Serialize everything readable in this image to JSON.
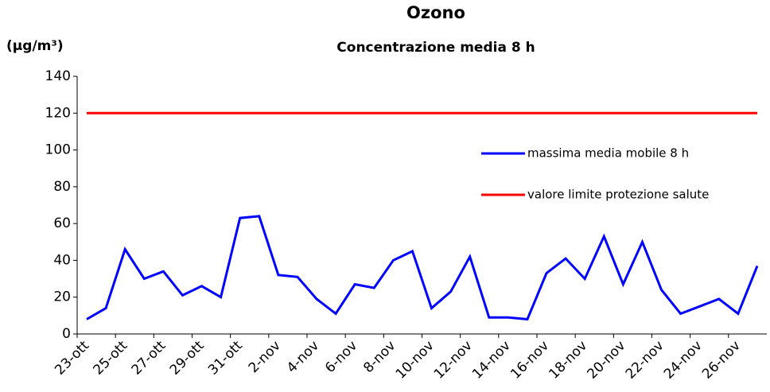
{
  "chart_data": {
    "type": "line",
    "title": "Ozono",
    "subtitle": "Concentrazione media 8 h",
    "y_label": "(μg/m³)",
    "categories": [
      "23-ott",
      null,
      "25-ott",
      null,
      "27-ott",
      null,
      "29-ott",
      null,
      "31-ott",
      null,
      "2-nov",
      null,
      "4-nov",
      null,
      "6-nov",
      null,
      "8-nov",
      null,
      "10-nov",
      null,
      "12-nov",
      null,
      "14-nov",
      null,
      "16-nov",
      null,
      "18-nov",
      null,
      "20-nov",
      null,
      "22-nov",
      null,
      "24-nov",
      null,
      "26-nov",
      null
    ],
    "series": [
      {
        "name": "massima media mobile 8 h",
        "color": "#0000ff",
        "values": [
          8,
          14,
          46,
          30,
          34,
          21,
          26,
          20,
          63,
          64,
          32,
          31,
          19,
          11,
          27,
          25,
          40,
          45,
          14,
          23,
          42,
          9,
          9,
          8,
          33,
          41,
          30,
          53,
          27,
          50,
          24,
          11,
          15,
          19,
          11,
          37
        ]
      },
      {
        "name": "valore limite protezione salute",
        "color": "#ff0000",
        "values": [
          120,
          120,
          120,
          120,
          120,
          120,
          120,
          120,
          120,
          120,
          120,
          120,
          120,
          120,
          120,
          120,
          120,
          120,
          120,
          120,
          120,
          120,
          120,
          120,
          120,
          120,
          120,
          120,
          120,
          120,
          120,
          120,
          120,
          120,
          120,
          120
        ]
      }
    ],
    "ylim": [
      0,
      140
    ],
    "yticks": [
      0,
      20,
      40,
      60,
      80,
      100,
      120,
      140
    ],
    "grid": false,
    "legend": "right"
  }
}
